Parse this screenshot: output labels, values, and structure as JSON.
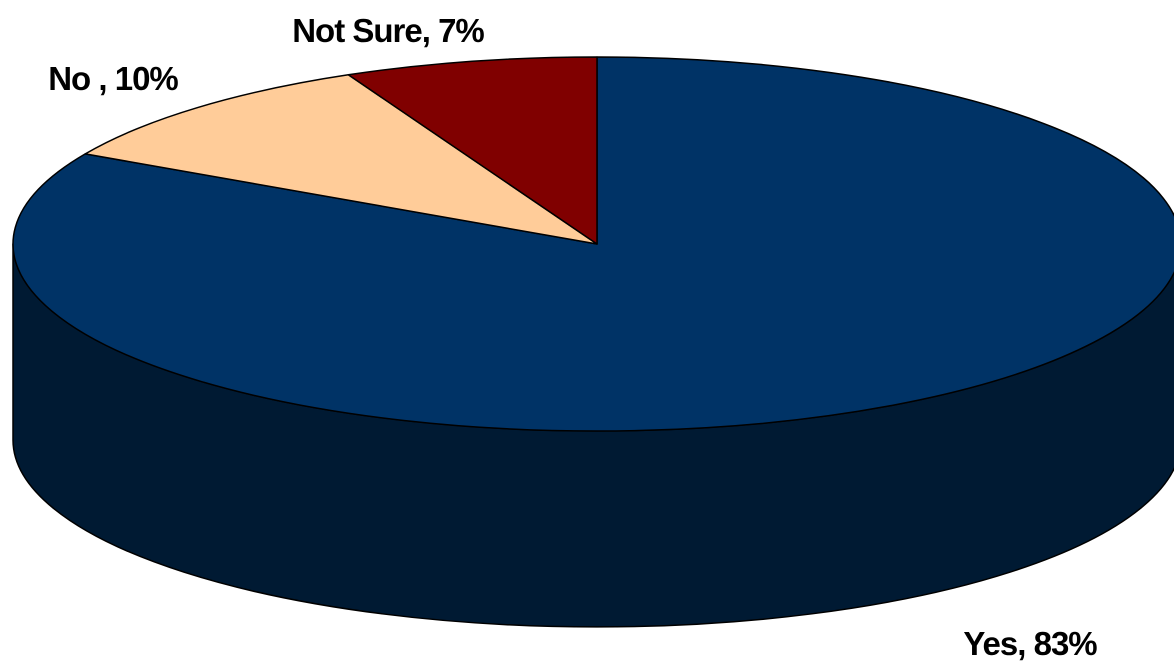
{
  "chart_data": {
    "type": "pie",
    "title": "",
    "slices": [
      {
        "name": "Yes",
        "value": 83,
        "label": "Yes, 83%",
        "color": "#003366",
        "side_color": "#001A33"
      },
      {
        "name": "No",
        "value": 10,
        "label": "No , 10%",
        "color": "#FFCC99",
        "side_color": "#806650"
      },
      {
        "name": "Not Sure",
        "value": 7,
        "label": "Not Sure, 7%",
        "color": "#800000",
        "side_color": "#400000"
      }
    ],
    "legend": "none",
    "style": "3d"
  }
}
